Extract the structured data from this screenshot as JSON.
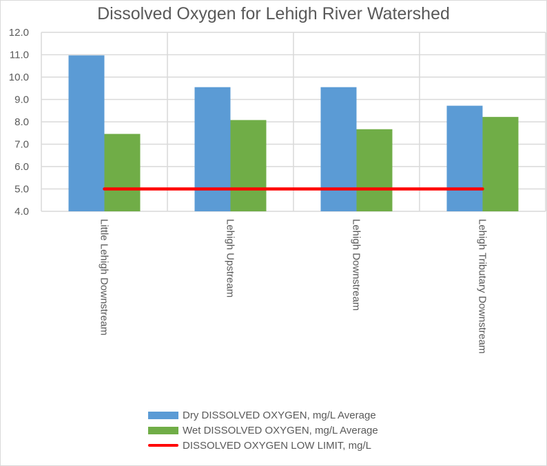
{
  "chart_data": {
    "type": "bar",
    "title": "Dissolved Oxygen for Lehigh River Watershed",
    "categories": [
      "Little Lehigh Downstream",
      "Lehigh Upstream",
      "Lehigh Downstream",
      "Lehigh Tributary Downstream"
    ],
    "series": [
      {
        "name": "Dry DISSOLVED OXYGEN, mg/L Average",
        "type": "bar",
        "color": "#5b9bd5",
        "values": [
          10.97,
          9.55,
          9.55,
          8.72
        ]
      },
      {
        "name": "Wet DISSOLVED OXYGEN, mg/L Average",
        "type": "bar",
        "color": "#70ad47",
        "values": [
          7.46,
          8.08,
          7.67,
          8.22
        ]
      },
      {
        "name": "DISSOLVED OXYGEN LOW LIMIT, mg/L",
        "type": "line",
        "color": "#ff0000",
        "values": [
          5.0,
          5.0,
          5.0,
          5.0
        ]
      }
    ],
    "ylim": [
      4.0,
      12.0
    ],
    "yticks": [
      "4.0",
      "5.0",
      "6.0",
      "7.0",
      "8.0",
      "9.0",
      "10.0",
      "11.0",
      "12.0"
    ],
    "xlabel": "",
    "ylabel": "",
    "grid": true,
    "legend": "bottom"
  }
}
